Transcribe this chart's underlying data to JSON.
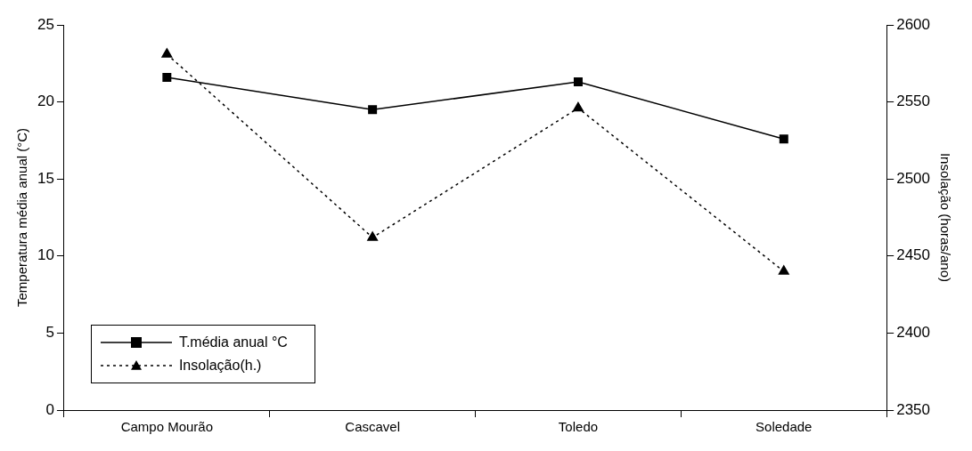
{
  "chart_data": {
    "type": "line",
    "ylabel": "Temperatura média anual (°C)",
    "y2label": "Insolação (horas/ano)",
    "categories": [
      "Campo Mourão",
      "Cascavel",
      "Toledo",
      "Soledade"
    ],
    "series": [
      {
        "name": "T.média anual °C",
        "color": "#000000",
        "marker": "square",
        "line_style": "solid",
        "values": [
          21.6,
          19.5,
          21.3,
          17.6
        ]
      },
      {
        "name": "Insolação(h.)",
        "color": "#000000",
        "marker": "triangle",
        "line_style": "dotted",
        "axis": "y2",
        "values": [
          2581,
          2462,
          2546,
          2440
        ]
      }
    ],
    "ylim": [
      0,
      25
    ],
    "yticks": [
      0,
      5,
      10,
      15,
      20,
      25
    ],
    "y2lim": [
      2350,
      2600
    ],
    "y2ticks": [
      2350,
      2400,
      2450,
      2500,
      2550,
      2600
    ],
    "grid": false,
    "legend": "bottom left"
  }
}
